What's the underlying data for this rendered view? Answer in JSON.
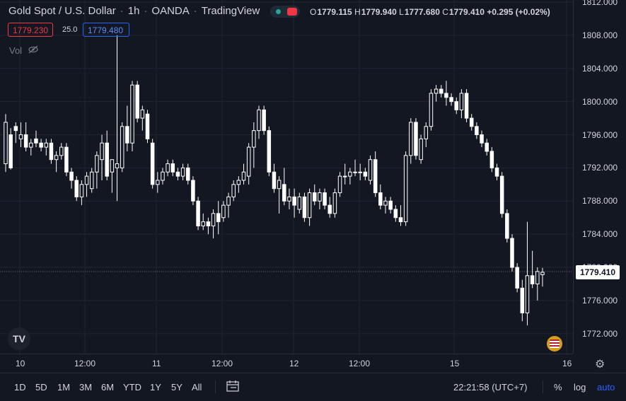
{
  "header": {
    "symbol": "Gold Spot / U.S. Dollar",
    "interval": "1h",
    "broker": "OANDA",
    "platform": "TradingView",
    "ohlc": {
      "o_label": "O",
      "o": "1779.115",
      "h_label": "H",
      "h": "1779.940",
      "l_label": "L",
      "l": "1777.680",
      "c_label": "C",
      "c": "1779.410",
      "change": "+0.295 (+0.02%)"
    }
  },
  "trade": {
    "sell": "1779.230",
    "spread": "25.0",
    "buy": "1779.480"
  },
  "indicators": {
    "vol_label": "Vol"
  },
  "price_axis": {
    "labels": [
      "1812.000",
      "1808.000",
      "1804.000",
      "1800.000",
      "1796.000",
      "1792.000",
      "1788.000",
      "1784.000",
      "1780.000",
      "1776.000",
      "1772.000"
    ],
    "current_price": "1779.410"
  },
  "time_axis": {
    "labels": [
      "10",
      "12:00",
      "11",
      "12:00",
      "12",
      "12:00",
      "15",
      "16"
    ]
  },
  "bottom_bar": {
    "ranges": [
      "1D",
      "5D",
      "1M",
      "3M",
      "6M",
      "YTD",
      "1Y",
      "5Y",
      "All"
    ],
    "clock": "22:21:58 (UTC+7)",
    "percent": "%",
    "log": "log",
    "auto": "auto"
  },
  "colors": {
    "background": "#131722",
    "candle": "#ffffff",
    "grid": "#1f2430",
    "sell": "#f23645",
    "buy": "#2962ff"
  },
  "chart_data": {
    "type": "candlestick",
    "ylim": [
      1770,
      1813
    ],
    "candles": [
      {
        "o": 1792.5,
        "h": 1798.5,
        "l": 1791.5,
        "c": 1797.5
      },
      {
        "o": 1796.0,
        "h": 1796.8,
        "l": 1791.8,
        "c": 1792.0
      },
      {
        "o": 1797.0,
        "h": 1797.5,
        "l": 1795.0,
        "c": 1796.5
      },
      {
        "o": 1795.5,
        "h": 1797.5,
        "l": 1794.5,
        "c": 1796.0
      },
      {
        "o": 1796.0,
        "h": 1797.5,
        "l": 1794.0,
        "c": 1794.5
      },
      {
        "o": 1794.5,
        "h": 1795.5,
        "l": 1793.5,
        "c": 1795.0
      },
      {
        "o": 1795.5,
        "h": 1796.5,
        "l": 1794.5,
        "c": 1795.0
      },
      {
        "o": 1795.0,
        "h": 1795.5,
        "l": 1794.0,
        "c": 1794.5
      },
      {
        "o": 1794.5,
        "h": 1795.5,
        "l": 1793.5,
        "c": 1795.0
      },
      {
        "o": 1795.0,
        "h": 1795.5,
        "l": 1792.5,
        "c": 1793.0
      },
      {
        "o": 1793.0,
        "h": 1794.0,
        "l": 1791.5,
        "c": 1793.5
      },
      {
        "o": 1793.5,
        "h": 1795.0,
        "l": 1793.0,
        "c": 1794.5
      },
      {
        "o": 1794.5,
        "h": 1795.0,
        "l": 1791.0,
        "c": 1791.5
      },
      {
        "o": 1791.5,
        "h": 1792.0,
        "l": 1789.5,
        "c": 1790.5
      },
      {
        "o": 1790.5,
        "h": 1791.0,
        "l": 1788.0,
        "c": 1788.5
      },
      {
        "o": 1788.5,
        "h": 1790.5,
        "l": 1787.5,
        "c": 1790.0
      },
      {
        "o": 1790.0,
        "h": 1791.5,
        "l": 1788.5,
        "c": 1791.0
      },
      {
        "o": 1789.5,
        "h": 1792.0,
        "l": 1789.0,
        "c": 1791.5
      },
      {
        "o": 1791.5,
        "h": 1794.0,
        "l": 1789.5,
        "c": 1793.5
      },
      {
        "o": 1793.0,
        "h": 1796.0,
        "l": 1790.5,
        "c": 1795.0
      },
      {
        "o": 1795.0,
        "h": 1796.5,
        "l": 1790.5,
        "c": 1791.0
      },
      {
        "o": 1791.5,
        "h": 1793.0,
        "l": 1789.0,
        "c": 1793.0
      },
      {
        "o": 1792.0,
        "h": 1808.0,
        "l": 1788.0,
        "c": 1792.5
      },
      {
        "o": 1792.0,
        "h": 1797.5,
        "l": 1791.5,
        "c": 1797.0
      },
      {
        "o": 1797.0,
        "h": 1799.5,
        "l": 1794.0,
        "c": 1795.0
      },
      {
        "o": 1795.0,
        "h": 1802.5,
        "l": 1794.0,
        "c": 1802.0
      },
      {
        "o": 1802.0,
        "h": 1802.5,
        "l": 1797.5,
        "c": 1798.0
      },
      {
        "o": 1798.0,
        "h": 1799.5,
        "l": 1796.5,
        "c": 1799.0
      },
      {
        "o": 1798.5,
        "h": 1799.0,
        "l": 1795.0,
        "c": 1795.5
      },
      {
        "o": 1795.0,
        "h": 1795.5,
        "l": 1789.5,
        "c": 1790.0
      },
      {
        "o": 1790.0,
        "h": 1791.5,
        "l": 1789.0,
        "c": 1790.5
      },
      {
        "o": 1790.5,
        "h": 1792.0,
        "l": 1790.0,
        "c": 1791.5
      },
      {
        "o": 1791.5,
        "h": 1793.0,
        "l": 1791.0,
        "c": 1792.5
      },
      {
        "o": 1792.5,
        "h": 1793.0,
        "l": 1791.0,
        "c": 1791.5
      },
      {
        "o": 1791.5,
        "h": 1792.0,
        "l": 1790.5,
        "c": 1791.0
      },
      {
        "o": 1791.0,
        "h": 1792.5,
        "l": 1790.5,
        "c": 1792.0
      },
      {
        "o": 1792.0,
        "h": 1792.5,
        "l": 1790.0,
        "c": 1790.5
      },
      {
        "o": 1790.5,
        "h": 1791.0,
        "l": 1787.5,
        "c": 1788.0
      },
      {
        "o": 1788.0,
        "h": 1788.5,
        "l": 1784.5,
        "c": 1785.0
      },
      {
        "o": 1785.0,
        "h": 1786.5,
        "l": 1784.5,
        "c": 1785.5
      },
      {
        "o": 1785.5,
        "h": 1786.0,
        "l": 1784.0,
        "c": 1785.0
      },
      {
        "o": 1785.0,
        "h": 1787.0,
        "l": 1783.5,
        "c": 1786.5
      },
      {
        "o": 1786.5,
        "h": 1788.0,
        "l": 1784.0,
        "c": 1785.5
      },
      {
        "o": 1786.0,
        "h": 1788.0,
        "l": 1785.5,
        "c": 1787.5
      },
      {
        "o": 1787.5,
        "h": 1789.0,
        "l": 1786.0,
        "c": 1788.5
      },
      {
        "o": 1788.5,
        "h": 1790.5,
        "l": 1788.0,
        "c": 1790.0
      },
      {
        "o": 1790.0,
        "h": 1791.0,
        "l": 1789.0,
        "c": 1790.5
      },
      {
        "o": 1790.5,
        "h": 1792.5,
        "l": 1790.0,
        "c": 1791.5
      },
      {
        "o": 1791.0,
        "h": 1795.0,
        "l": 1790.0,
        "c": 1794.5
      },
      {
        "o": 1794.5,
        "h": 1797.5,
        "l": 1792.0,
        "c": 1796.5
      },
      {
        "o": 1796.5,
        "h": 1799.5,
        "l": 1795.5,
        "c": 1799.0
      },
      {
        "o": 1799.0,
        "h": 1799.5,
        "l": 1796.0,
        "c": 1796.5
      },
      {
        "o": 1796.5,
        "h": 1797.0,
        "l": 1791.0,
        "c": 1791.5
      },
      {
        "o": 1791.5,
        "h": 1792.5,
        "l": 1789.0,
        "c": 1789.5
      },
      {
        "o": 1789.5,
        "h": 1791.0,
        "l": 1786.5,
        "c": 1790.5
      },
      {
        "o": 1790.0,
        "h": 1792.0,
        "l": 1787.5,
        "c": 1788.0
      },
      {
        "o": 1788.0,
        "h": 1789.5,
        "l": 1787.0,
        "c": 1788.5
      },
      {
        "o": 1788.5,
        "h": 1789.5,
        "l": 1786.0,
        "c": 1787.5
      },
      {
        "o": 1787.0,
        "h": 1789.0,
        "l": 1786.5,
        "c": 1788.5
      },
      {
        "o": 1788.5,
        "h": 1789.0,
        "l": 1785.5,
        "c": 1786.0
      },
      {
        "o": 1786.0,
        "h": 1789.5,
        "l": 1785.0,
        "c": 1789.0
      },
      {
        "o": 1789.0,
        "h": 1790.0,
        "l": 1787.5,
        "c": 1788.0
      },
      {
        "o": 1788.0,
        "h": 1789.5,
        "l": 1787.0,
        "c": 1789.0
      },
      {
        "o": 1789.0,
        "h": 1789.5,
        "l": 1787.0,
        "c": 1787.5
      },
      {
        "o": 1787.5,
        "h": 1788.5,
        "l": 1786.0,
        "c": 1786.5
      },
      {
        "o": 1786.5,
        "h": 1789.5,
        "l": 1786.0,
        "c": 1789.0
      },
      {
        "o": 1789.0,
        "h": 1791.5,
        "l": 1788.5,
        "c": 1791.0
      },
      {
        "o": 1791.0,
        "h": 1792.5,
        "l": 1790.0,
        "c": 1791.0
      },
      {
        "o": 1791.0,
        "h": 1792.0,
        "l": 1790.0,
        "c": 1791.5
      },
      {
        "o": 1791.5,
        "h": 1793.0,
        "l": 1791.0,
        "c": 1791.5
      },
      {
        "o": 1791.5,
        "h": 1792.5,
        "l": 1790.5,
        "c": 1791.5
      },
      {
        "o": 1791.5,
        "h": 1792.0,
        "l": 1790.5,
        "c": 1791.0
      },
      {
        "o": 1790.5,
        "h": 1793.5,
        "l": 1790.0,
        "c": 1793.0
      },
      {
        "o": 1793.0,
        "h": 1794.0,
        "l": 1788.5,
        "c": 1789.0
      },
      {
        "o": 1789.0,
        "h": 1790.0,
        "l": 1787.0,
        "c": 1787.5
      },
      {
        "o": 1787.5,
        "h": 1788.5,
        "l": 1786.5,
        "c": 1788.0
      },
      {
        "o": 1788.0,
        "h": 1788.5,
        "l": 1786.5,
        "c": 1787.0
      },
      {
        "o": 1787.0,
        "h": 1787.5,
        "l": 1785.5,
        "c": 1786.0
      },
      {
        "o": 1786.0,
        "h": 1787.5,
        "l": 1785.0,
        "c": 1785.5
      },
      {
        "o": 1785.5,
        "h": 1794.0,
        "l": 1785.0,
        "c": 1793.5
      },
      {
        "o": 1793.5,
        "h": 1798.0,
        "l": 1792.5,
        "c": 1797.5
      },
      {
        "o": 1797.5,
        "h": 1798.0,
        "l": 1793.0,
        "c": 1793.5
      },
      {
        "o": 1793.0,
        "h": 1796.0,
        "l": 1792.5,
        "c": 1795.5
      },
      {
        "o": 1795.5,
        "h": 1797.5,
        "l": 1794.5,
        "c": 1797.0
      },
      {
        "o": 1797.0,
        "h": 1801.5,
        "l": 1796.5,
        "c": 1801.0
      },
      {
        "o": 1801.0,
        "h": 1802.0,
        "l": 1800.0,
        "c": 1801.5
      },
      {
        "o": 1801.5,
        "h": 1802.0,
        "l": 1800.5,
        "c": 1801.0
      },
      {
        "o": 1801.0,
        "h": 1802.5,
        "l": 1799.5,
        "c": 1800.5
      },
      {
        "o": 1800.5,
        "h": 1801.0,
        "l": 1799.5,
        "c": 1800.0
      },
      {
        "o": 1800.0,
        "h": 1800.5,
        "l": 1798.5,
        "c": 1799.0
      },
      {
        "o": 1799.0,
        "h": 1801.5,
        "l": 1798.0,
        "c": 1801.0
      },
      {
        "o": 1801.0,
        "h": 1801.5,
        "l": 1797.5,
        "c": 1798.0
      },
      {
        "o": 1798.0,
        "h": 1798.5,
        "l": 1796.5,
        "c": 1797.0
      },
      {
        "o": 1797.0,
        "h": 1797.5,
        "l": 1795.5,
        "c": 1796.0
      },
      {
        "o": 1796.0,
        "h": 1796.5,
        "l": 1794.5,
        "c": 1795.0
      },
      {
        "o": 1795.0,
        "h": 1795.5,
        "l": 1793.5,
        "c": 1794.0
      },
      {
        "o": 1794.0,
        "h": 1794.5,
        "l": 1791.5,
        "c": 1792.0
      },
      {
        "o": 1792.0,
        "h": 1792.5,
        "l": 1790.5,
        "c": 1791.0
      },
      {
        "o": 1791.0,
        "h": 1791.5,
        "l": 1786.0,
        "c": 1786.5
      },
      {
        "o": 1786.5,
        "h": 1787.0,
        "l": 1783.0,
        "c": 1783.5
      },
      {
        "o": 1783.5,
        "h": 1784.0,
        "l": 1779.5,
        "c": 1780.0
      },
      {
        "o": 1780.0,
        "h": 1780.5,
        "l": 1777.0,
        "c": 1777.5
      },
      {
        "o": 1777.5,
        "h": 1778.5,
        "l": 1773.5,
        "c": 1774.5
      },
      {
        "o": 1774.5,
        "h": 1785.5,
        "l": 1773.0,
        "c": 1779.0
      },
      {
        "o": 1779.0,
        "h": 1782.0,
        "l": 1777.5,
        "c": 1778.0
      },
      {
        "o": 1778.0,
        "h": 1780.0,
        "l": 1776.0,
        "c": 1779.5
      },
      {
        "o": 1779.115,
        "h": 1779.94,
        "l": 1777.68,
        "c": 1779.41
      }
    ]
  }
}
